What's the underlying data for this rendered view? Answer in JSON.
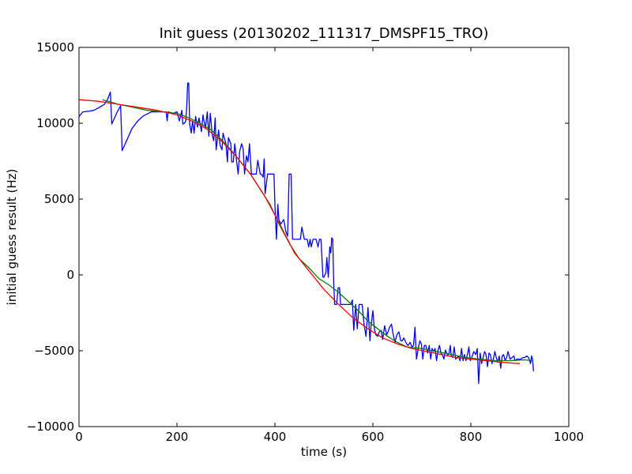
{
  "chart_data": {
    "type": "line",
    "title": "Init guess (20130202_111317_DMSPF15_TRO)",
    "xlabel": "time (s)",
    "ylabel": "initial guess result (Hz)",
    "xlim": [
      0,
      1000
    ],
    "ylim": [
      -10000,
      15000
    ],
    "x_ticks": [
      0,
      200,
      400,
      600,
      800,
      1000
    ],
    "y_ticks": [
      -10000,
      -5000,
      0,
      5000,
      10000,
      15000
    ],
    "x_tick_labels": [
      "0",
      "200",
      "400",
      "600",
      "800",
      "1000"
    ],
    "y_tick_labels": [
      "−10000",
      "−5000",
      "0",
      "5000",
      "10000",
      "15000"
    ],
    "grid": false,
    "legend": null,
    "series": [
      {
        "color": "#0000ff",
        "points": [
          [
            0,
            10450
          ],
          [
            8,
            10750
          ],
          [
            22,
            10800
          ],
          [
            30,
            10850
          ],
          [
            42,
            11050
          ],
          [
            52,
            11250
          ],
          [
            58,
            11550
          ],
          [
            64,
            12050
          ],
          [
            67,
            9950
          ],
          [
            78,
            10750
          ],
          [
            85,
            11150
          ],
          [
            88,
            8200
          ],
          [
            100,
            9050
          ],
          [
            108,
            9650
          ],
          [
            120,
            10150
          ],
          [
            132,
            10500
          ],
          [
            148,
            10750
          ],
          [
            178,
            10750
          ],
          [
            180,
            10150
          ],
          [
            182,
            10750
          ],
          [
            192,
            10650
          ],
          [
            200,
            10750
          ],
          [
            205,
            10150
          ],
          [
            210,
            10850
          ],
          [
            212,
            9950
          ],
          [
            215,
            10000
          ],
          [
            218,
            10150
          ],
          [
            220,
            11150
          ],
          [
            222,
            12650
          ],
          [
            224,
            12650
          ],
          [
            226,
            9950
          ],
          [
            229,
            9350
          ],
          [
            232,
            10150
          ],
          [
            235,
            9350
          ],
          [
            238,
            10450
          ],
          [
            242,
            9750
          ],
          [
            245,
            10350
          ],
          [
            250,
            9450
          ],
          [
            253,
            10550
          ],
          [
            258,
            9650
          ],
          [
            262,
            10750
          ],
          [
            265,
            9150
          ],
          [
            268,
            10650
          ],
          [
            272,
            9250
          ],
          [
            275,
            8850
          ],
          [
            278,
            10350
          ],
          [
            280,
            8250
          ],
          [
            285,
            9550
          ],
          [
            288,
            8550
          ],
          [
            292,
            8250
          ],
          [
            294,
            9350
          ],
          [
            300,
            8650
          ],
          [
            303,
            7450
          ],
          [
            305,
            9050
          ],
          [
            310,
            8650
          ],
          [
            312,
            7450
          ],
          [
            315,
            7450
          ],
          [
            318,
            8650
          ],
          [
            322,
            7450
          ],
          [
            325,
            6650
          ],
          [
            328,
            8150
          ],
          [
            332,
            8650
          ],
          [
            335,
            8350
          ],
          [
            338,
            6650
          ],
          [
            342,
            7850
          ],
          [
            345,
            7450
          ],
          [
            348,
            8650
          ],
          [
            352,
            6650
          ],
          [
            362,
            6650
          ],
          [
            365,
            7550
          ],
          [
            370,
            6650
          ],
          [
            372,
            6650
          ],
          [
            376,
            6450
          ],
          [
            378,
            7650
          ],
          [
            380,
            5350
          ],
          [
            385,
            6650
          ],
          [
            398,
            6650
          ],
          [
            400,
            4650
          ],
          [
            403,
            2350
          ],
          [
            406,
            4650
          ],
          [
            408,
            3650
          ],
          [
            412,
            3350
          ],
          [
            418,
            3650
          ],
          [
            422,
            2900
          ],
          [
            426,
            2550
          ],
          [
            429,
            6650
          ],
          [
            433,
            6650
          ],
          [
            436,
            2350
          ],
          [
            452,
            2350
          ],
          [
            455,
            3150
          ],
          [
            460,
            2350
          ],
          [
            466,
            2350
          ],
          [
            469,
            1850
          ],
          [
            472,
            2350
          ],
          [
            474,
            1850
          ],
          [
            478,
            2350
          ],
          [
            484,
            2350
          ],
          [
            488,
            1850
          ],
          [
            491,
            2350
          ],
          [
            494,
            2350
          ],
          [
            496,
            1150
          ],
          [
            498,
            -150
          ],
          [
            500,
            -150
          ],
          [
            504,
            150
          ],
          [
            506,
            1150
          ],
          [
            509,
            -150
          ],
          [
            512,
            1850
          ],
          [
            514,
            1450
          ],
          [
            516,
            2450
          ],
          [
            518,
            2350
          ],
          [
            520,
            -450
          ],
          [
            522,
            -1950
          ],
          [
            526,
            -1950
          ],
          [
            529,
            -850
          ],
          [
            532,
            -850
          ],
          [
            534,
            -1950
          ],
          [
            555,
            -1950
          ],
          [
            558,
            -1650
          ],
          [
            561,
            -3650
          ],
          [
            565,
            -1950
          ],
          [
            568,
            -3550
          ],
          [
            572,
            -1950
          ],
          [
            578,
            -1950
          ],
          [
            582,
            -3250
          ],
          [
            586,
            -4050
          ],
          [
            590,
            -2150
          ],
          [
            594,
            -4350
          ],
          [
            596,
            -3450
          ],
          [
            600,
            -2350
          ],
          [
            603,
            -3550
          ],
          [
            606,
            -3950
          ],
          [
            610,
            -4050
          ],
          [
            613,
            -3750
          ],
          [
            617,
            -3650
          ],
          [
            620,
            -4250
          ],
          [
            624,
            -3350
          ],
          [
            628,
            -3950
          ],
          [
            631,
            -3750
          ],
          [
            634,
            -3450
          ],
          [
            638,
            -3250
          ],
          [
            641,
            -3850
          ],
          [
            645,
            -4450
          ],
          [
            649,
            -3950
          ],
          [
            653,
            -3750
          ],
          [
            657,
            -4350
          ],
          [
            660,
            -4350
          ],
          [
            663,
            -4150
          ],
          [
            666,
            -4350
          ],
          [
            669,
            -4550
          ],
          [
            672,
            -4650
          ],
          [
            676,
            -4450
          ],
          [
            680,
            -4750
          ],
          [
            683,
            -4650
          ],
          [
            686,
            -3450
          ],
          [
            689,
            -5550
          ],
          [
            693,
            -4750
          ],
          [
            696,
            -4350
          ],
          [
            699,
            -4550
          ],
          [
            702,
            -5550
          ],
          [
            705,
            -4650
          ],
          [
            708,
            -4650
          ],
          [
            712,
            -5150
          ],
          [
            715,
            -4650
          ],
          [
            718,
            -5550
          ],
          [
            721,
            -4850
          ],
          [
            724,
            -5050
          ],
          [
            727,
            -4850
          ],
          [
            730,
            -5650
          ],
          [
            733,
            -4950
          ],
          [
            736,
            -4650
          ],
          [
            739,
            -5150
          ],
          [
            742,
            -5250
          ],
          [
            745,
            -5550
          ],
          [
            748,
            -4950
          ],
          [
            752,
            -5250
          ],
          [
            755,
            -5250
          ],
          [
            758,
            -4650
          ],
          [
            760,
            -5350
          ],
          [
            763,
            -5450
          ],
          [
            766,
            -4750
          ],
          [
            769,
            -5550
          ],
          [
            772,
            -5450
          ],
          [
            775,
            -5350
          ],
          [
            778,
            -5650
          ],
          [
            781,
            -4850
          ],
          [
            784,
            -5650
          ],
          [
            787,
            -5250
          ],
          [
            790,
            -5650
          ],
          [
            793,
            -5250
          ],
          [
            796,
            -4750
          ],
          [
            799,
            -5650
          ],
          [
            802,
            -5450
          ],
          [
            806,
            -5050
          ],
          [
            810,
            -5250
          ],
          [
            813,
            -4850
          ],
          [
            816,
            -7150
          ],
          [
            819,
            -5150
          ],
          [
            822,
            -5850
          ],
          [
            825,
            -5450
          ],
          [
            828,
            -5050
          ],
          [
            831,
            -5250
          ],
          [
            834,
            -6050
          ],
          [
            837,
            -5150
          ],
          [
            840,
            -5250
          ],
          [
            843,
            -5850
          ],
          [
            846,
            -5550
          ],
          [
            849,
            -5050
          ],
          [
            852,
            -5450
          ],
          [
            855,
            -5750
          ],
          [
            858,
            -5350
          ],
          [
            861,
            -6150
          ],
          [
            864,
            -5350
          ],
          [
            867,
            -5250
          ],
          [
            870,
            -5650
          ],
          [
            873,
            -5450
          ],
          [
            876,
            -5050
          ],
          [
            880,
            -5550
          ],
          [
            884,
            -5450
          ],
          [
            888,
            -5350
          ],
          [
            890,
            -5650
          ],
          [
            894,
            -5550
          ],
          [
            898,
            -5550
          ],
          [
            902,
            -5550
          ],
          [
            906,
            -5450
          ],
          [
            910,
            -5450
          ],
          [
            914,
            -5350
          ],
          [
            918,
            -5450
          ],
          [
            922,
            -5850
          ],
          [
            924,
            -5350
          ],
          [
            926,
            -5550
          ],
          [
            928,
            -6350
          ]
        ]
      },
      {
        "color": "#007f00",
        "points": [
          [
            48,
            11550
          ],
          [
            80,
            11250
          ],
          [
            110,
            11050
          ],
          [
            140,
            10850
          ],
          [
            170,
            10750
          ],
          [
            200,
            10650
          ],
          [
            225,
            10350
          ],
          [
            250,
            9950
          ],
          [
            270,
            9550
          ],
          [
            290,
            8950
          ],
          [
            310,
            8250
          ],
          [
            330,
            7450
          ],
          [
            350,
            6650
          ],
          [
            370,
            5650
          ],
          [
            390,
            4650
          ],
          [
            410,
            3250
          ],
          [
            430,
            2050
          ],
          [
            450,
            1050
          ],
          [
            470,
            450
          ],
          [
            490,
            -250
          ],
          [
            510,
            -650
          ],
          [
            530,
            -1150
          ],
          [
            550,
            -1750
          ],
          [
            570,
            -2350
          ],
          [
            590,
            -3050
          ],
          [
            610,
            -3550
          ],
          [
            630,
            -4050
          ],
          [
            650,
            -4450
          ],
          [
            670,
            -4750
          ],
          [
            700,
            -4850
          ],
          [
            730,
            -5050
          ],
          [
            760,
            -5250
          ],
          [
            790,
            -5450
          ],
          [
            820,
            -5550
          ],
          [
            850,
            -5650
          ],
          [
            880,
            -5650
          ],
          [
            910,
            -5600
          ],
          [
            926,
            -5650
          ]
        ]
      },
      {
        "color": "#ff0000",
        "points": [
          [
            0,
            11550
          ],
          [
            40,
            11450
          ],
          [
            80,
            11250
          ],
          [
            120,
            11050
          ],
          [
            160,
            10850
          ],
          [
            200,
            10550
          ],
          [
            230,
            10150
          ],
          [
            260,
            9650
          ],
          [
            290,
            8850
          ],
          [
            320,
            7850
          ],
          [
            350,
            6650
          ],
          [
            380,
            5150
          ],
          [
            410,
            3350
          ],
          [
            440,
            1450
          ],
          [
            470,
            250
          ],
          [
            500,
            -950
          ],
          [
            530,
            -1950
          ],
          [
            560,
            -2850
          ],
          [
            590,
            -3550
          ],
          [
            620,
            -4150
          ],
          [
            650,
            -4550
          ],
          [
            680,
            -4850
          ],
          [
            710,
            -5050
          ],
          [
            740,
            -5250
          ],
          [
            770,
            -5450
          ],
          [
            800,
            -5550
          ],
          [
            830,
            -5650
          ],
          [
            860,
            -5750
          ],
          [
            900,
            -5850
          ]
        ]
      }
    ]
  }
}
